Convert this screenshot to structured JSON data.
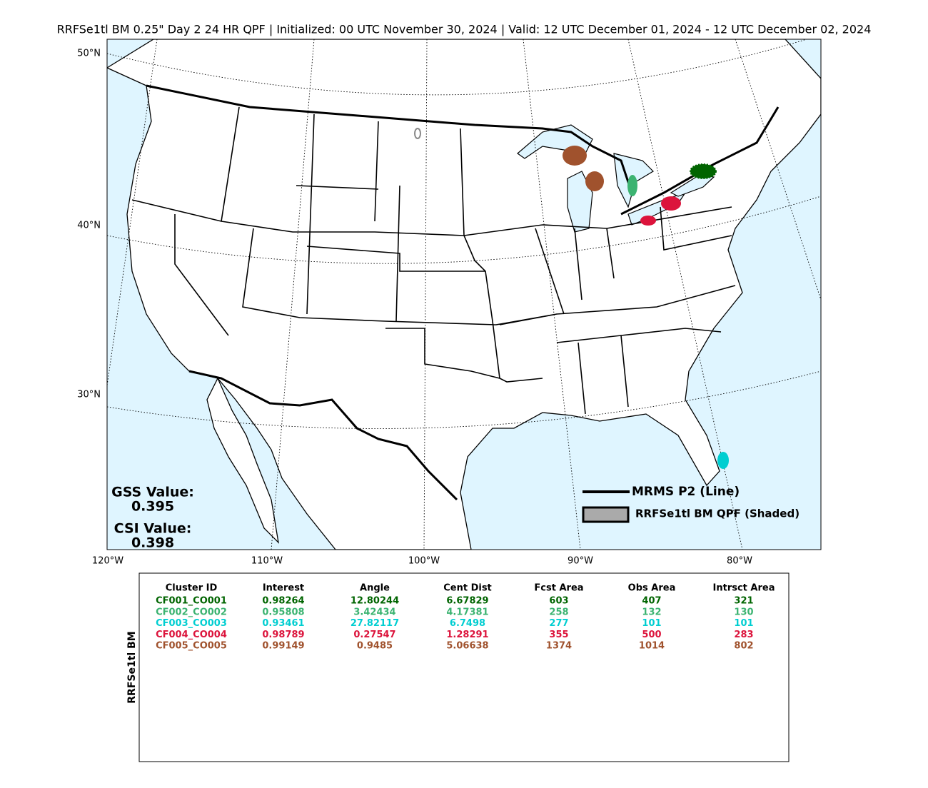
{
  "title": "RRFSe1tl BM 0.25\" Day 2 24 HR QPF | Initialized: 00 UTC November 30, 2024 | Valid: 12 UTC December 01, 2024 - 12 UTC December 02, 2024",
  "map": {
    "lat_labels": [
      "50°N",
      "40°N",
      "30°N"
    ],
    "lon_labels": [
      "120°W",
      "110°W",
      "100°W",
      "90°W",
      "80°W"
    ],
    "legend": {
      "line": "MRMS P2 (Line)",
      "shaded": "RRFSe1tl BM QPF (Shaded)"
    },
    "scores": {
      "gss_label": "GSS Value:",
      "gss": 0.395,
      "csi_label": "CSI Value:",
      "csi": 0.398
    }
  },
  "table": {
    "side_label": "RRFSe1tl BM",
    "header": [
      "Cluster ID",
      "Interest",
      "Angle",
      "Cent Dist",
      "Fcst Area",
      "Obs Area",
      "Intrsct Area"
    ],
    "row_colors": [
      "#006400",
      "#3cb371",
      "#00ced1",
      "#dc143c",
      "#a0522d"
    ],
    "rows": [
      [
        "CF001_CO001",
        0.98264,
        12.80244,
        6.67829,
        603,
        407,
        321
      ],
      [
        "CF002_CO002",
        0.95808,
        3.42434,
        4.17381,
        258,
        132,
        130
      ],
      [
        "CF003_CO003",
        0.93461,
        27.82117,
        6.7498,
        277,
        101,
        101
      ],
      [
        "CF004_CO004",
        0.98789,
        0.27547,
        1.28291,
        355,
        500,
        283
      ],
      [
        "CF005_CO005",
        0.99149,
        0.9485,
        5.06638,
        1374,
        1014,
        802
      ]
    ]
  }
}
